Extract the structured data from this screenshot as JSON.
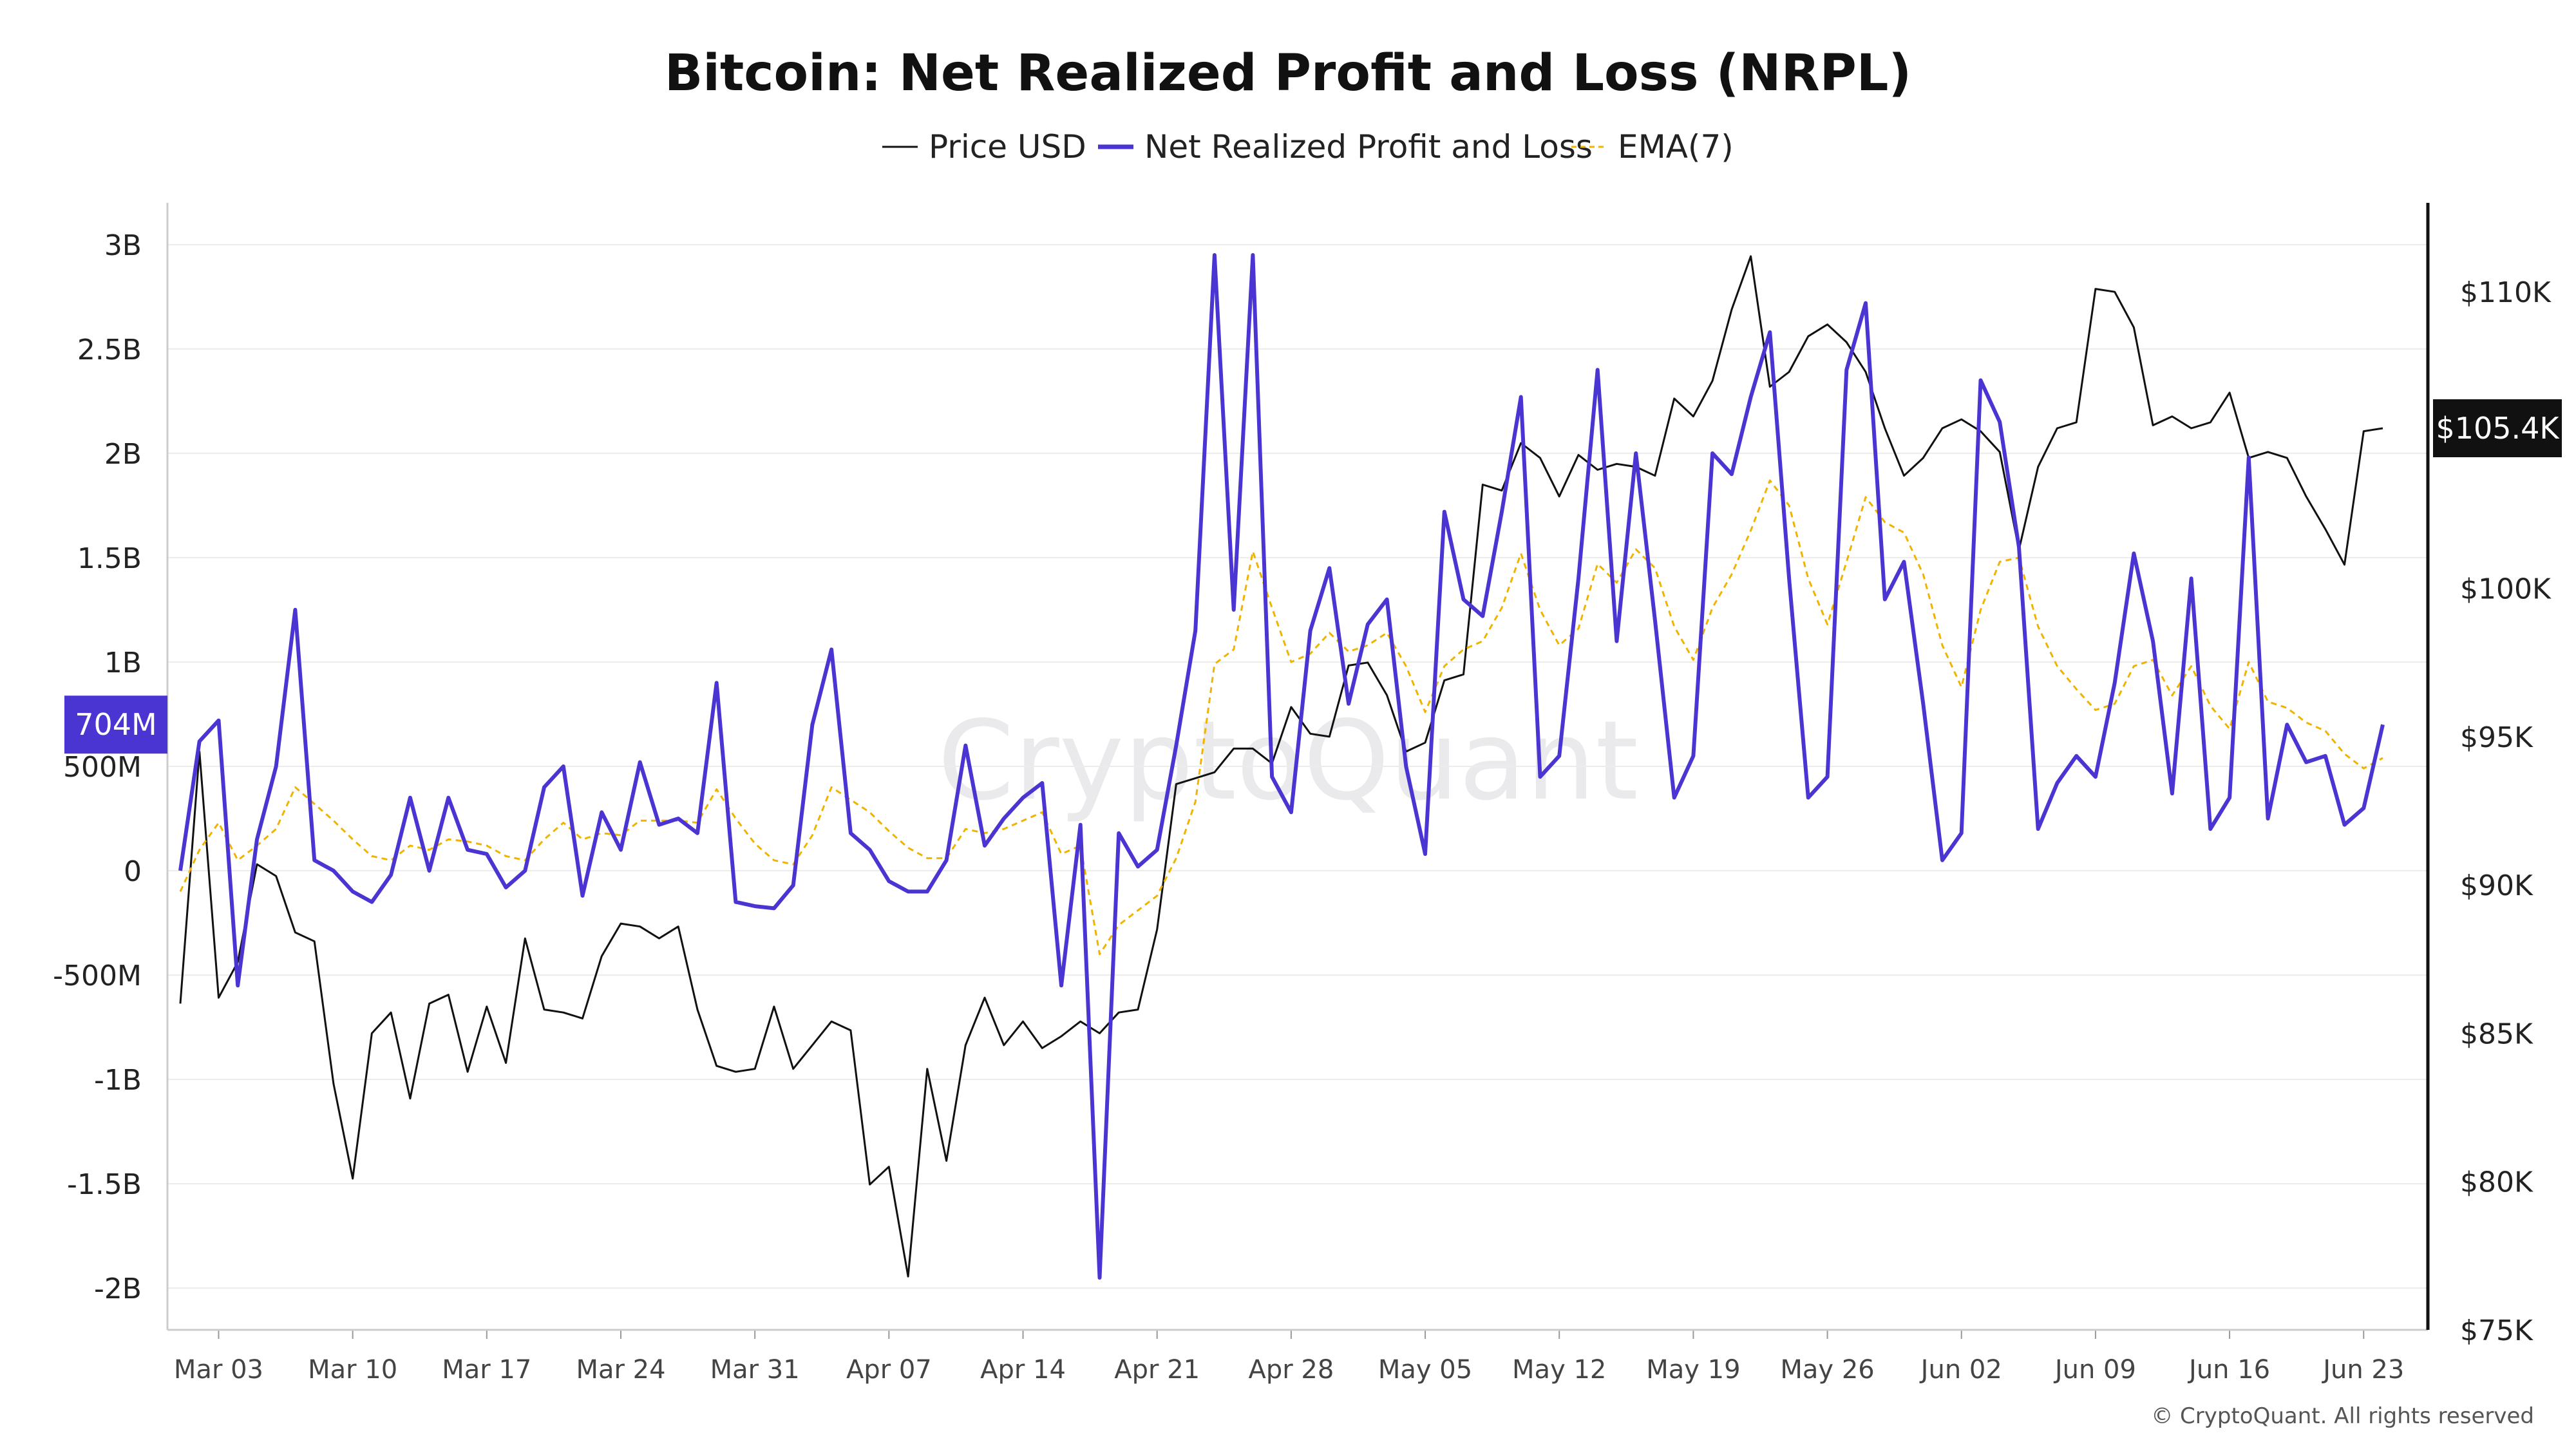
{
  "chart_data": {
    "type": "line",
    "title": "Bitcoin: Net Realized Profit and Loss (NRPL)",
    "legend": [
      {
        "name": "Price USD",
        "color": "#111111",
        "style": "solid-thin"
      },
      {
        "name": "Net Realized Profit and Loss",
        "color": "#4a35d2",
        "style": "solid"
      },
      {
        "name": "EMA(7)",
        "color": "#f0b400",
        "style": "dashed"
      }
    ],
    "legend_position": "top-center",
    "x_start": "2025-03-01",
    "x_tick_labels": [
      "Mar 03",
      "Mar 10",
      "Mar 17",
      "Mar 24",
      "Mar 31",
      "Apr 07",
      "Apr 14",
      "Apr 21",
      "Apr 28",
      "May 05",
      "May 12",
      "May 19",
      "May 26",
      "Jun 02",
      "Jun 09",
      "Jun 16",
      "Jun 23"
    ],
    "y_left": {
      "range": [
        -2200000000,
        3200000000
      ],
      "ticks": [
        -2000000000,
        -1500000000,
        -1000000000,
        -500000000,
        0,
        500000000,
        1000000000,
        1500000000,
        2000000000,
        2500000000,
        3000000000
      ],
      "tick_labels": [
        "-2B",
        "-1.5B",
        "-1B",
        "-500M",
        "0",
        "500M",
        "1B",
        "1.5B",
        "2B",
        "2.5B",
        "3B"
      ]
    },
    "y_right": {
      "range": [
        75000,
        113000
      ],
      "ticks": [
        75000,
        80000,
        85000,
        90000,
        95000,
        100000,
        105000,
        110000
      ],
      "tick_labels": [
        "$75K",
        "$80K",
        "$85K",
        "$90K",
        "$95K",
        "$100K",
        "$105K",
        "$110K"
      ]
    },
    "grid": true,
    "last_value_tags": {
      "nrpl": "704M",
      "price": "$105.4K"
    },
    "series": [
      {
        "name": "Net Realized Profit and Loss",
        "axis": "left",
        "values": [
          0.0,
          0.62,
          0.72,
          -0.55,
          0.15,
          0.5,
          1.25,
          0.05,
          0.0,
          -0.1,
          -0.15,
          -0.02,
          0.35,
          0.0,
          0.35,
          0.1,
          0.08,
          -0.08,
          0.0,
          0.4,
          0.5,
          -0.12,
          0.28,
          0.1,
          0.52,
          0.22,
          0.25,
          0.18,
          0.9,
          -0.15,
          -0.17,
          -0.18,
          -0.07,
          0.7,
          1.06,
          0.18,
          0.1,
          -0.05,
          -0.1,
          -0.1,
          0.05,
          0.6,
          0.12,
          0.25,
          0.35,
          0.42,
          -0.55,
          0.22,
          -1.95,
          0.18,
          0.02,
          0.1,
          0.6,
          1.15,
          2.95,
          1.25,
          2.95,
          0.45,
          0.28,
          1.15,
          1.45,
          0.8,
          1.18,
          1.3,
          0.5,
          0.08,
          1.72,
          1.3,
          1.22,
          1.72,
          2.27,
          0.45,
          0.55,
          1.4,
          2.4,
          1.1,
          2.0,
          1.2,
          0.35,
          0.55,
          2.0,
          1.9,
          2.27,
          2.58,
          1.4,
          0.35,
          0.45,
          2.4,
          2.72,
          1.3,
          1.48,
          0.8,
          0.05,
          0.18,
          2.35,
          2.15,
          1.55,
          0.2,
          0.42,
          0.55,
          0.45,
          0.9,
          1.52,
          1.1,
          0.37,
          1.4,
          0.2,
          0.35,
          1.98,
          0.25,
          0.7,
          0.52,
          0.55,
          0.22,
          0.3,
          0.7
        ]
      },
      {
        "name": "EMA(7)",
        "axis": "left",
        "values": [
          -0.1,
          0.1,
          0.23,
          0.05,
          0.12,
          0.2,
          0.4,
          0.32,
          0.24,
          0.15,
          0.07,
          0.05,
          0.12,
          0.1,
          0.15,
          0.14,
          0.12,
          0.07,
          0.05,
          0.15,
          0.23,
          0.15,
          0.18,
          0.17,
          0.24,
          0.24,
          0.24,
          0.23,
          0.39,
          0.25,
          0.13,
          0.05,
          0.03,
          0.17,
          0.4,
          0.34,
          0.28,
          0.19,
          0.11,
          0.06,
          0.06,
          0.2,
          0.18,
          0.2,
          0.24,
          0.28,
          0.08,
          0.12,
          -0.4,
          -0.26,
          -0.19,
          -0.12,
          0.06,
          0.33,
          0.99,
          1.06,
          1.53,
          1.26,
          1.0,
          1.04,
          1.14,
          1.05,
          1.08,
          1.14,
          0.98,
          0.76,
          0.98,
          1.06,
          1.1,
          1.26,
          1.52,
          1.25,
          1.08,
          1.16,
          1.47,
          1.38,
          1.54,
          1.45,
          1.17,
          1.01,
          1.26,
          1.42,
          1.63,
          1.87,
          1.75,
          1.4,
          1.18,
          1.48,
          1.79,
          1.67,
          1.62,
          1.42,
          1.08,
          0.88,
          1.25,
          1.48,
          1.5,
          1.17,
          0.98,
          0.87,
          0.77,
          0.8,
          0.98,
          1.01,
          0.84,
          0.98,
          0.79,
          0.68,
          1.0,
          0.81,
          0.78,
          0.71,
          0.67,
          0.56,
          0.49,
          0.54
        ]
      },
      {
        "name": "Price USD",
        "axis": "right",
        "values": [
          86000,
          94500,
          86200,
          87400,
          90700,
          90300,
          88400,
          88100,
          83300,
          80100,
          85000,
          85700,
          82800,
          86000,
          86300,
          83700,
          85900,
          84000,
          88200,
          85800,
          85700,
          85500,
          87600,
          88700,
          88600,
          88200,
          88600,
          85800,
          83900,
          83700,
          83800,
          85900,
          83800,
          84600,
          85400,
          85100,
          79900,
          80500,
          76800,
          83800,
          80700,
          84600,
          86200,
          84600,
          85400,
          84500,
          84900,
          85400,
          85000,
          85700,
          85800,
          88500,
          93400,
          93600,
          93800,
          94600,
          94600,
          94100,
          96000,
          95100,
          95000,
          97400,
          97500,
          96400,
          94500,
          94800,
          96900,
          97100,
          103500,
          103300,
          104900,
          104400,
          103100,
          104500,
          104000,
          104200,
          104100,
          103800,
          106400,
          105800,
          107000,
          109400,
          111200,
          106800,
          107300,
          108500,
          108900,
          108300,
          107300,
          105400,
          103800,
          104400,
          105400,
          105700,
          105300,
          104600,
          101300,
          104100,
          105400,
          105600,
          110100,
          110000,
          108800,
          105500,
          105800,
          105400,
          105600,
          106600,
          104400,
          104600,
          104400,
          103100,
          102000,
          100800,
          105300,
          105400
        ]
      }
    ],
    "watermark": "CryptoQuant",
    "copyright": "© CryptoQuant. All rights reserved"
  }
}
